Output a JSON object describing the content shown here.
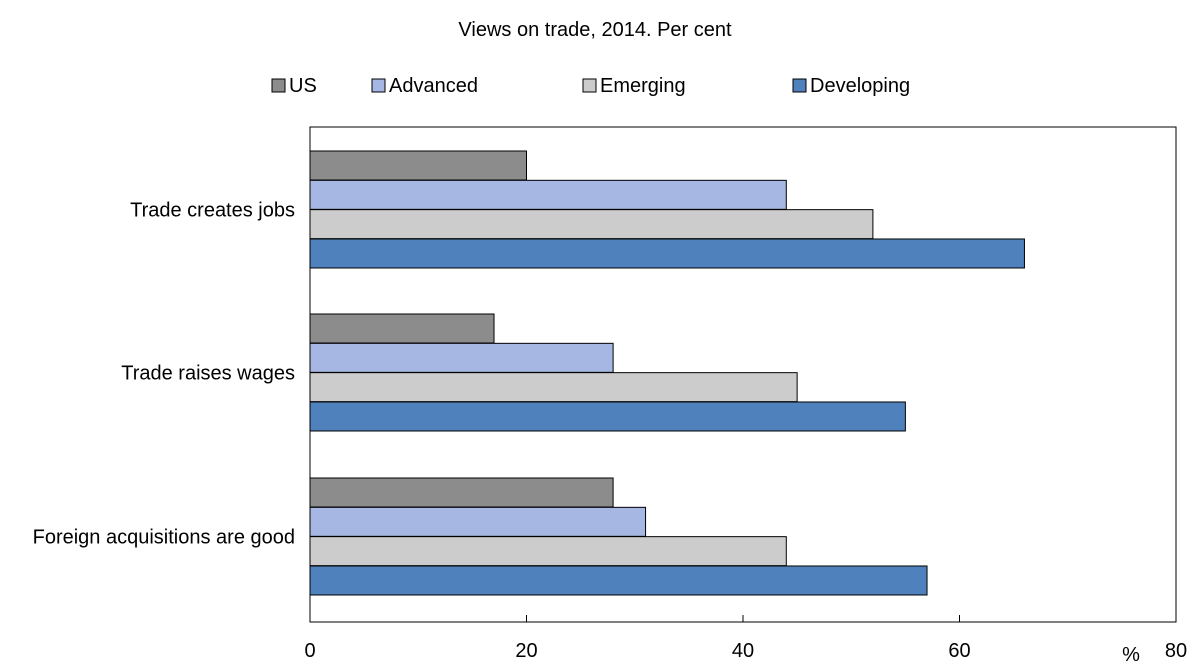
{
  "chart_data": {
    "type": "bar",
    "orientation": "horizontal",
    "title": "Views on trade, 2014. Per cent",
    "categories": [
      "Trade creates jobs",
      "Trade raises wages",
      "Foreign acquisitions are good"
    ],
    "series": [
      {
        "name": "US",
        "values": [
          20,
          17,
          28
        ],
        "color": "#8c8c8c"
      },
      {
        "name": "Advanced",
        "values": [
          44,
          28,
          31
        ],
        "color": "#a6b7e3"
      },
      {
        "name": "Emerging",
        "values": [
          52,
          45,
          44
        ],
        "color": "#cccccc"
      },
      {
        "name": "Developing",
        "values": [
          66,
          55,
          57
        ],
        "color": "#4f81bd"
      }
    ],
    "xlim": [
      0,
      80
    ],
    "xticks": [
      0,
      20,
      40,
      60,
      80
    ],
    "xunit": "%",
    "grid": false,
    "legend_position": "top"
  }
}
